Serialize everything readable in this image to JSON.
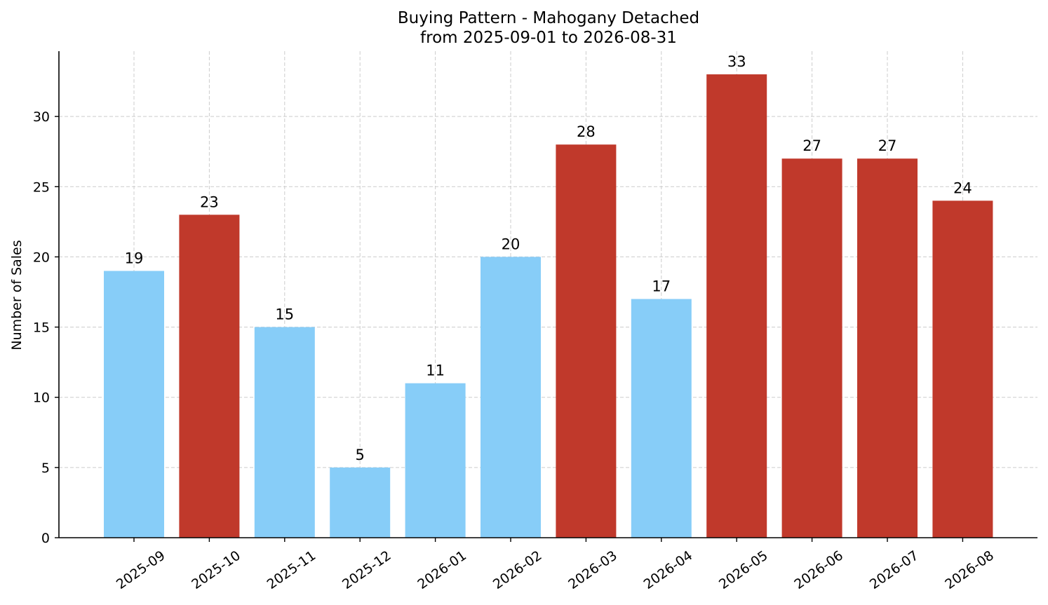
{
  "chart_data": {
    "type": "bar",
    "title": "Buying Pattern - Mahogany Detached",
    "subtitle": "from 2025-09-01 to 2026-08-31",
    "xlabel": "",
    "ylabel": "Number of Sales",
    "categories": [
      "2025-09",
      "2025-10",
      "2025-11",
      "2025-12",
      "2026-01",
      "2026-02",
      "2026-03",
      "2026-04",
      "2026-05",
      "2026-06",
      "2026-07",
      "2026-08"
    ],
    "values": [
      19,
      23,
      15,
      5,
      11,
      20,
      28,
      17,
      33,
      27,
      27,
      24
    ],
    "bar_colors": [
      "#87cdf8",
      "#c0392b",
      "#87cdf8",
      "#87cdf8",
      "#87cdf8",
      "#87cdf8",
      "#c0392b",
      "#87cdf8",
      "#c0392b",
      "#c0392b",
      "#c0392b",
      "#c0392b"
    ],
    "ylim": [
      0,
      34.65
    ],
    "yticks": [
      0,
      5,
      10,
      15,
      20,
      25,
      30
    ],
    "grid": true,
    "legend": "none"
  }
}
